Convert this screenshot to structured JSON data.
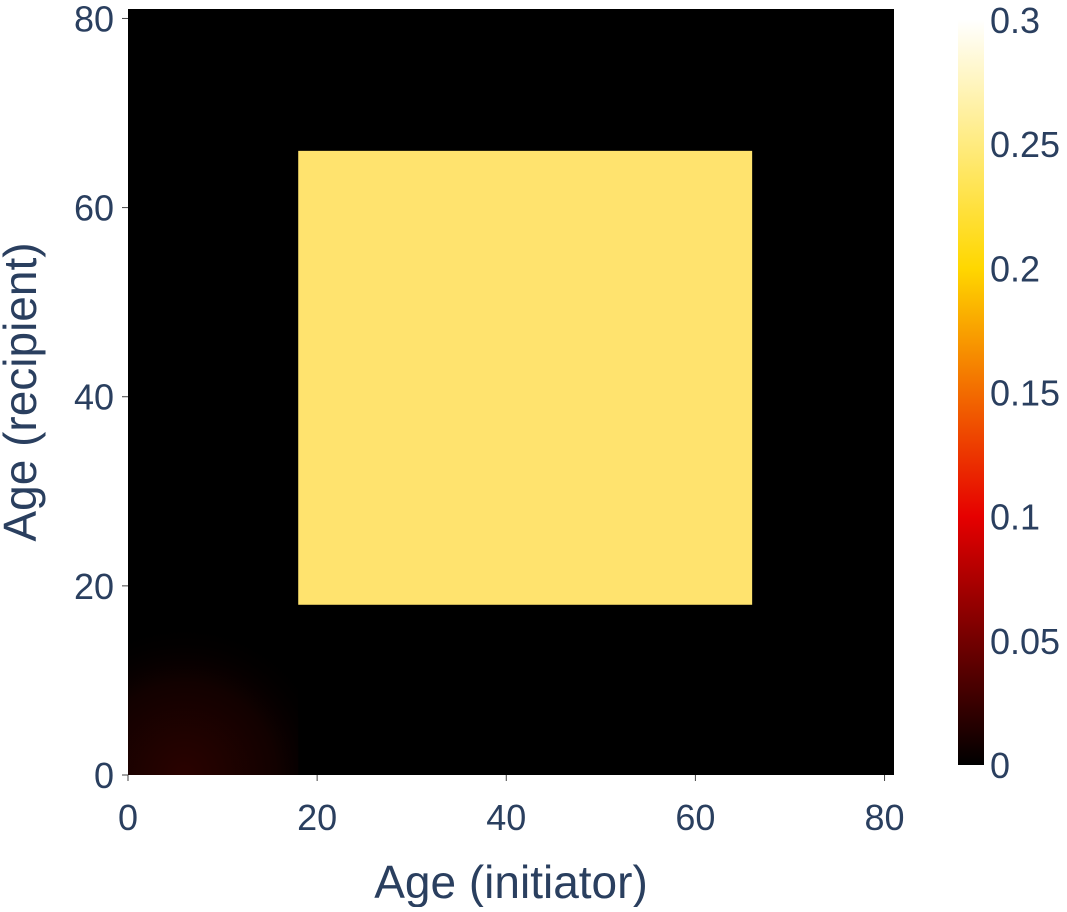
{
  "chart_data": {
    "type": "heatmap",
    "title": "",
    "xlabel": "Age (initiator)",
    "ylabel": "Age (recipient)",
    "xlim": [
      0,
      81
    ],
    "ylim": [
      0,
      81
    ],
    "xticks": [
      0,
      20,
      40,
      60,
      80
    ],
    "yticks": [
      0,
      20,
      40,
      60,
      80
    ],
    "colorbar": {
      "range": [
        0,
        0.3
      ],
      "ticks": [
        "0",
        "0.05",
        "0.1",
        "0.15",
        "0.2",
        "0.25",
        "0.3"
      ],
      "tick_values": [
        0,
        0.05,
        0.1,
        0.15,
        0.2,
        0.25,
        0.3
      ],
      "colorscale": [
        "#000000",
        "#e60000",
        "#ffd700",
        "#ffffff"
      ]
    },
    "regions": [
      {
        "x_range": [
          18,
          66
        ],
        "y_range": [
          18,
          66
        ],
        "value": 0.25
      },
      {
        "x_range": [
          0,
          18
        ],
        "y_range": [
          0,
          18
        ],
        "value": "small",
        "peak_at": [
          6,
          0
        ],
        "peak_value": 0.02
      }
    ],
    "background_value": 0,
    "grid": false
  },
  "colors": {
    "axis_text": "#2a3f5f",
    "block": "#ffe36e"
  }
}
